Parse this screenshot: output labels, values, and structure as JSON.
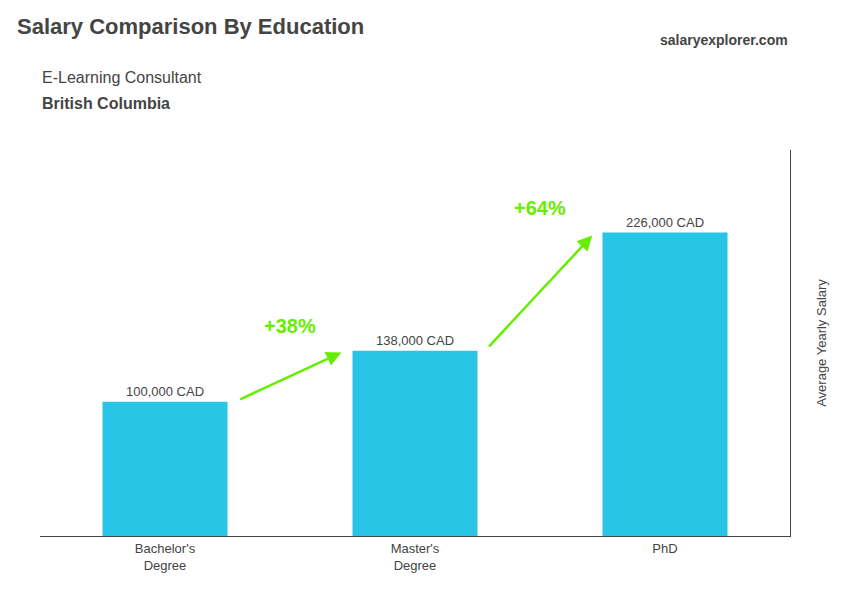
{
  "chart_data": {
    "type": "bar",
    "title": "Salary Comparison By Education",
    "subtitle": [
      "E-Learning Consultant",
      "British Columbia"
    ],
    "source": "salaryexplorer.com",
    "ylabel": "Average Yearly Salary",
    "categories": [
      "Bachelor's\nDegree",
      "Master's\nDegree",
      "PhD"
    ],
    "values": [
      100000,
      138000,
      226000
    ],
    "value_labels": [
      "100,000 CAD",
      "138,000 CAD",
      "226,000 CAD"
    ],
    "data_labels": true,
    "color": "#29c5e6",
    "annotations": [
      {
        "text": "+38%",
        "color": "#66ee00"
      },
      {
        "text": "+64%",
        "color": "#66ee00"
      }
    ],
    "ylim": [
      0,
      287500
    ],
    "tick_labels": "x",
    "grid": false
  }
}
